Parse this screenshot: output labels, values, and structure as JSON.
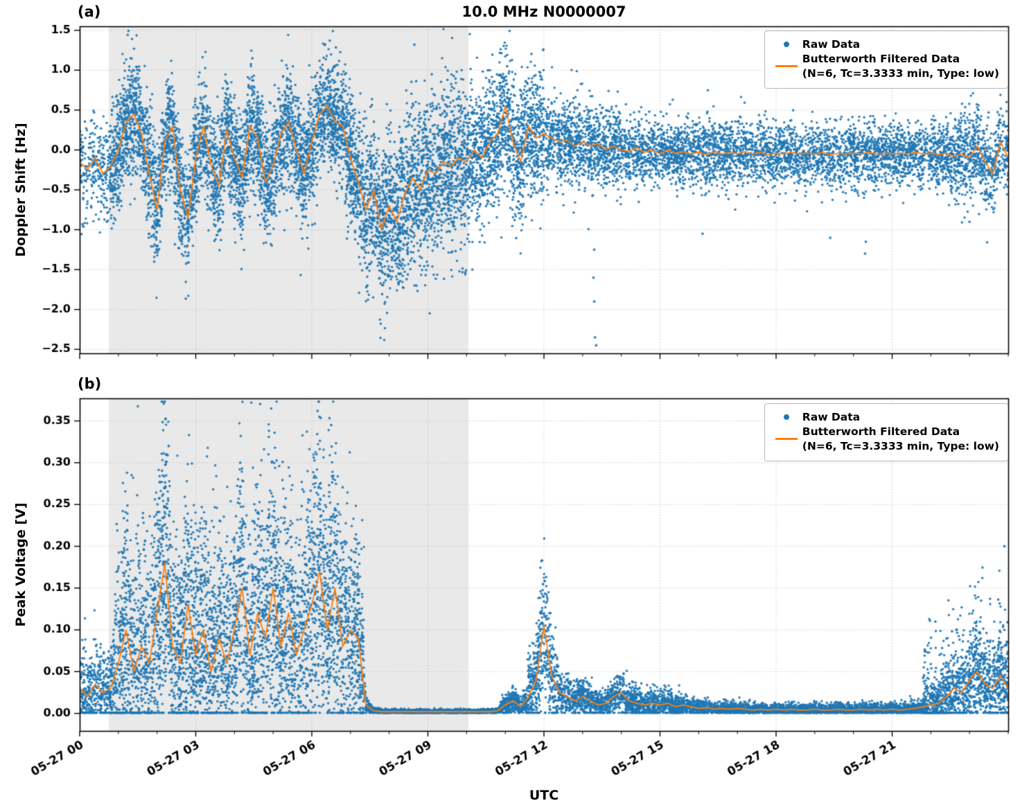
{
  "labels": {
    "title": "10.0 MHz N0000007",
    "panel_a": "(a)",
    "panel_b": "(b)",
    "ylabel_a": "Doppler Shift [Hz]",
    "ylabel_b": "Peak Voltage [V]",
    "xlabel": "UTC"
  },
  "legend": {
    "raw": "Raw Data",
    "filtered_line1": "Butterworth Filtered Data",
    "filtered_line2": "(N=6, Tc=3.3333 min, Type: low)"
  },
  "colors": {
    "raw": "#1f77b4",
    "filtered": "#ff7f0e",
    "shade": "#e9e9e9",
    "grid": "#c4c4c4",
    "axis": "#000000"
  },
  "chart_data": [
    {
      "type": "scatter",
      "panel": "a",
      "title": "10.0 MHz N0000007",
      "ylabel": "Doppler Shift [Hz]",
      "xlabel": "UTC",
      "grid": true,
      "legend_position": "upper right",
      "ylim": [
        -2.55,
        1.55
      ],
      "ytick_values": [
        1.5,
        1.0,
        0.5,
        0.0,
        -0.5,
        -1.0,
        -1.5,
        -2.0,
        -2.5
      ],
      "ytick_labels": [
        "1.5",
        "1.0",
        "0.5",
        "0.0",
        "−0.5",
        "−1.0",
        "−1.5",
        "−2.0",
        "−2.5"
      ],
      "xlim_hours": [
        0,
        24
      ],
      "xtick_hours": [
        0,
        3,
        6,
        9,
        12,
        15,
        18,
        21
      ],
      "xtick_labels": [
        "05-27 00",
        "05-27 03",
        "05-27 06",
        "05-27 09",
        "05-27 12",
        "05-27 15",
        "05-27 18",
        "05-27 21"
      ],
      "x_minor_step_hours": 1,
      "shade_hours": [
        0.75,
        10.05
      ],
      "series": [
        {
          "name": "Raw Data",
          "kind": "scatter",
          "model": "doppler",
          "color_key": "raw",
          "segments": [
            {
              "t0": 0.0,
              "t1": 0.75,
              "spread": 0.28,
              "per_hour": 320,
              "tail": 0.3,
              "tail_p": 0.05
            },
            {
              "t0": 0.75,
              "t1": 7.2,
              "spread": 0.36,
              "per_hour": 700,
              "tail": 0.5,
              "tail_p": 0.06
            },
            {
              "t0": 7.2,
              "t1": 10.0,
              "spread": 0.48,
              "per_hour": 700,
              "tail": 0.7,
              "tail_p": 0.12
            },
            {
              "t0": 10.0,
              "t1": 12.0,
              "spread": 0.42,
              "per_hour": 700,
              "tail": 0.5,
              "tail_p": 0.08
            },
            {
              "t0": 12.0,
              "t1": 14.0,
              "spread": 0.26,
              "per_hour": 520,
              "tail": 0.4,
              "tail_p": 0.04
            },
            {
              "t0": 14.0,
              "t1": 18.0,
              "spread": 0.2,
              "per_hour": 430,
              "tail": 0.35,
              "tail_p": 0.03
            },
            {
              "t0": 18.0,
              "t1": 22.5,
              "spread": 0.19,
              "per_hour": 420,
              "tail": 0.4,
              "tail_p": 0.03
            },
            {
              "t0": 22.5,
              "t1": 24.0,
              "spread": 0.27,
              "per_hour": 480,
              "tail": 0.3,
              "tail_p": 0.04
            }
          ],
          "outliers": [
            [
              8.3,
              -1.55
            ],
            [
              8.45,
              -1.62
            ],
            [
              8.65,
              1.32
            ],
            [
              8.7,
              -1.7
            ],
            [
              9.0,
              -1.45
            ],
            [
              9.1,
              0.95
            ],
            [
              10.15,
              -1.5
            ],
            [
              10.6,
              1.0
            ],
            [
              11.05,
              1.05
            ],
            [
              13.28,
              -1.6
            ],
            [
              13.3,
              -1.9
            ],
            [
              13.32,
              -2.35
            ],
            [
              13.35,
              -2.45
            ],
            [
              13.3,
              -1.25
            ],
            [
              16.1,
              -1.05
            ],
            [
              19.4,
              -1.1
            ],
            [
              20.3,
              -1.3
            ],
            [
              20.32,
              -1.15
            ],
            [
              23.0,
              -0.9
            ]
          ]
        },
        {
          "name": "Butterworth Filtered Data",
          "params": "(N=6, Tc=3.3333 min, Type: low)",
          "kind": "line",
          "color_key": "filtered",
          "x0": 0,
          "dx": 0.2,
          "y": [
            -0.15,
            -0.25,
            -0.1,
            -0.3,
            -0.2,
            0.0,
            0.35,
            0.45,
            0.2,
            -0.3,
            -0.75,
            0.1,
            0.3,
            -0.5,
            -0.85,
            -0.1,
            0.3,
            -0.2,
            -0.45,
            0.25,
            -0.1,
            -0.35,
            0.3,
            0.15,
            -0.4,
            -0.2,
            0.2,
            0.35,
            0.0,
            -0.3,
            0.1,
            0.45,
            0.55,
            0.35,
            0.3,
            -0.1,
            -0.4,
            -0.75,
            -0.5,
            -1.0,
            -0.7,
            -0.9,
            -0.55,
            -0.35,
            -0.5,
            -0.25,
            -0.3,
            -0.15,
            -0.2,
            -0.1,
            -0.15,
            0.0,
            -0.1,
            0.1,
            0.2,
            0.55,
            0.1,
            -0.15,
            0.3,
            0.15,
            0.2,
            0.15,
            0.1,
            0.12,
            0.05,
            0.1,
            0.05,
            0.08,
            0.0,
            0.05,
            0.0,
            -0.02,
            0.03,
            -0.03,
            0.0,
            -0.05,
            0.0,
            -0.04,
            -0.02,
            -0.05,
            -0.03,
            -0.06,
            -0.02,
            -0.05,
            -0.03,
            -0.05,
            -0.02,
            -0.05,
            -0.03,
            -0.06,
            -0.04,
            -0.05,
            -0.03,
            -0.05,
            -0.04,
            -0.05,
            -0.03,
            -0.06,
            -0.04,
            -0.05,
            -0.04,
            -0.05,
            -0.03,
            -0.05,
            -0.04,
            -0.05,
            -0.04,
            -0.05,
            -0.03,
            -0.05,
            -0.04,
            -0.06,
            -0.04,
            -0.08,
            -0.05,
            -0.1,
            0.05,
            -0.15,
            -0.3,
            0.1,
            -0.1
          ]
        }
      ]
    },
    {
      "type": "scatter",
      "panel": "b",
      "ylabel": "Peak Voltage [V]",
      "xlabel": "UTC",
      "grid": true,
      "legend_position": "upper right",
      "ylim": [
        -0.021,
        0.377
      ],
      "ytick_values": [
        0.35,
        0.3,
        0.25,
        0.2,
        0.15,
        0.1,
        0.05,
        0.0
      ],
      "ytick_labels": [
        "0.35",
        "0.30",
        "0.25",
        "0.20",
        "0.15",
        "0.10",
        "0.05",
        "0.00"
      ],
      "xlim_hours": [
        0,
        24
      ],
      "xtick_hours": [
        0,
        3,
        6,
        9,
        12,
        15,
        18,
        21
      ],
      "xtick_labels": [
        "05-27 00",
        "05-27 03",
        "05-27 06",
        "05-27 09",
        "05-27 12",
        "05-27 15",
        "05-27 18",
        "05-27 21"
      ],
      "x_minor_step_hours": 1,
      "shade_hours": [
        0.75,
        10.05
      ],
      "series": [
        {
          "name": "Raw Data",
          "kind": "scatter",
          "model": "voltage",
          "color_key": "raw",
          "segments": [
            {
              "t0": 0.0,
              "t1": 0.9,
              "spread": 0.02,
              "per_hour": 500,
              "burst_p": 0.02,
              "burst": 0.05
            },
            {
              "t0": 0.9,
              "t1": 7.35,
              "spread": 0.05,
              "per_hour": 700,
              "burst_p": 0.08,
              "burst": 0.17
            },
            {
              "t0": 7.35,
              "t1": 10.9,
              "spread": 0.0012,
              "per_hour": 500,
              "burst_p": 0.0,
              "burst": 0
            },
            {
              "t0": 10.9,
              "t1": 11.55,
              "spread": 0.004,
              "per_hour": 500,
              "burst_p": 0.01,
              "burst": 0.01
            },
            {
              "t0": 11.55,
              "t1": 12.35,
              "spread": 0.02,
              "per_hour": 600,
              "burst_p": 0.06,
              "burst": 0.06
            },
            {
              "t0": 12.35,
              "t1": 15.5,
              "spread": 0.007,
              "per_hour": 480,
              "burst_p": 0.02,
              "burst": 0.015
            },
            {
              "t0": 15.5,
              "t1": 21.8,
              "spread": 0.0035,
              "per_hour": 430,
              "burst_p": 0.0,
              "burst": 0
            },
            {
              "t0": 21.8,
              "t1": 24.0,
              "spread": 0.018,
              "per_hour": 600,
              "burst_p": 0.08,
              "burst": 0.1
            }
          ],
          "outliers": [
            [
              6.15,
              0.362
            ],
            [
              6.2,
              0.355
            ],
            [
              6.5,
              0.345
            ],
            [
              4.15,
              0.3
            ],
            [
              2.3,
              0.32
            ],
            [
              11.95,
              0.183
            ],
            [
              23.9,
              0.2
            ],
            [
              23.3,
              0.135
            ]
          ]
        },
        {
          "name": "Butterworth Filtered Data",
          "params": "(N=6, Tc=3.3333 min, Type: low)",
          "kind": "line",
          "color_key": "filtered",
          "x0": 0,
          "dx": 0.2,
          "y": [
            0.03,
            0.02,
            0.035,
            0.025,
            0.03,
            0.06,
            0.1,
            0.05,
            0.08,
            0.06,
            0.12,
            0.18,
            0.08,
            0.06,
            0.13,
            0.07,
            0.1,
            0.05,
            0.09,
            0.06,
            0.1,
            0.15,
            0.07,
            0.12,
            0.09,
            0.15,
            0.08,
            0.12,
            0.07,
            0.1,
            0.13,
            0.17,
            0.1,
            0.15,
            0.08,
            0.1,
            0.09,
            0.01,
            0.003,
            0.002,
            0.002,
            0.002,
            0.002,
            0.002,
            0.002,
            0.002,
            0.002,
            0.002,
            0.002,
            0.002,
            0.002,
            0.002,
            0.002,
            0.002,
            0.003,
            0.01,
            0.015,
            0.008,
            0.02,
            0.04,
            0.105,
            0.045,
            0.025,
            0.02,
            0.015,
            0.02,
            0.015,
            0.01,
            0.012,
            0.02,
            0.025,
            0.015,
            0.012,
            0.01,
            0.012,
            0.01,
            0.012,
            0.008,
            0.01,
            0.008,
            0.006,
            0.007,
            0.005,
            0.006,
            0.005,
            0.006,
            0.005,
            0.004,
            0.005,
            0.004,
            0.005,
            0.004,
            0.005,
            0.004,
            0.004,
            0.005,
            0.004,
            0.004,
            0.005,
            0.004,
            0.004,
            0.005,
            0.004,
            0.005,
            0.004,
            0.005,
            0.004,
            0.005,
            0.006,
            0.008,
            0.01,
            0.012,
            0.02,
            0.03,
            0.025,
            0.04,
            0.05,
            0.035,
            0.03,
            0.045,
            0.03
          ]
        }
      ]
    }
  ]
}
